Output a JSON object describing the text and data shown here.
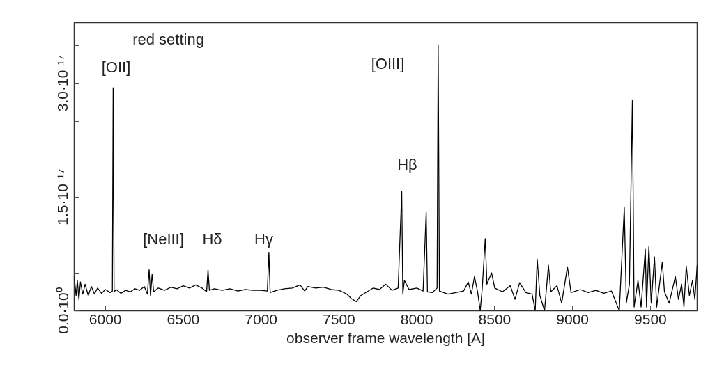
{
  "chart_data": {
    "type": "line",
    "xlabel": "observer frame wavelength [A]",
    "xlim": [
      5800,
      9800
    ],
    "xticks": [
      6000,
      6500,
      7000,
      7500,
      8000,
      8500,
      9000,
      9500
    ],
    "ylim": [
      0,
      3.8e-17
    ],
    "yticks": [
      {
        "value": 0,
        "label": "0.0·10⁰"
      },
      {
        "value": 5e-18,
        "label": null
      },
      {
        "value": 1e-17,
        "label": null
      },
      {
        "value": 1.5e-17,
        "label": "1.5·10⁻¹⁷"
      },
      {
        "value": 2e-17,
        "label": null
      },
      {
        "value": 2.5e-17,
        "label": null
      },
      {
        "value": 3e-17,
        "label": "3.0·10⁻¹⁷"
      },
      {
        "value": 3.5e-17,
        "label": null
      }
    ],
    "grid": false,
    "annotations": [
      "red setting",
      "[OII]",
      "[NeIII]",
      "Hδ",
      "Hγ",
      "Hβ",
      "[OIII]"
    ],
    "series": [
      {
        "color": "#000000",
        "x": [
          5800,
          5812,
          5820,
          5830,
          5840,
          5855,
          5870,
          5890,
          5910,
          5930,
          5950,
          5975,
          6000,
          6030,
          6045,
          6050,
          6056,
          6070,
          6100,
          6130,
          6160,
          6190,
          6220,
          6250,
          6270,
          6281,
          6290,
          6300,
          6310,
          6340,
          6380,
          6420,
          6460,
          6500,
          6540,
          6580,
          6620,
          6650,
          6659,
          6668,
          6700,
          6750,
          6800,
          6850,
          6900,
          6950,
          7000,
          7040,
          7050,
          7058,
          7100,
          7150,
          7200,
          7250,
          7280,
          7300,
          7350,
          7400,
          7450,
          7500,
          7550,
          7580,
          7612,
          7640,
          7680,
          7720,
          7760,
          7800,
          7840,
          7880,
          7903,
          7910,
          7920,
          7950,
          8000,
          8040,
          8060,
          8068,
          8100,
          8130,
          8137,
          8145,
          8200,
          8250,
          8300,
          8330,
          8350,
          8370,
          8390,
          8407,
          8420,
          8439,
          8450,
          8480,
          8500,
          8550,
          8600,
          8630,
          8660,
          8700,
          8740,
          8760,
          8773,
          8790,
          8820,
          8845,
          8860,
          8900,
          8930,
          8967,
          8990,
          9050,
          9100,
          9150,
          9200,
          9250,
          9300,
          9332,
          9345,
          9365,
          9384,
          9395,
          9420,
          9440,
          9467,
          9475,
          9490,
          9505,
          9526,
          9540,
          9576,
          9590,
          9620,
          9660,
          9680,
          9700,
          9715,
          9730,
          9750,
          9770,
          9785,
          9800
        ],
        "values": [
          4.5e-18,
          2e-18,
          4e-18,
          1.5e-18,
          3.8e-18,
          2.2e-18,
          3.5e-18,
          2e-18,
          3.2e-18,
          2.2e-18,
          3e-18,
          2.3e-18,
          2.8e-18,
          2.4e-18,
          2.6e-18,
          2.94e-17,
          2.5e-18,
          2.8e-18,
          2.3e-18,
          2.7e-18,
          2.5e-18,
          2.9e-18,
          2.7e-18,
          3.2e-18,
          2.2e-18,
          5.4e-18,
          2e-18,
          4.8e-18,
          2.5e-18,
          3e-18,
          2.7e-18,
          3.1e-18,
          2.9e-18,
          3.3e-18,
          3e-18,
          3.4e-18,
          3e-18,
          2.5e-18,
          5.4e-18,
          2.7e-18,
          2.9e-18,
          2.7e-18,
          2.9e-18,
          2.6e-18,
          2.8e-18,
          2.7e-18,
          2.7e-18,
          2.6e-18,
          7.7e-18,
          2.4e-18,
          2.7e-18,
          2.9e-18,
          3e-18,
          3.4e-18,
          2.6e-18,
          3.2e-18,
          3e-18,
          3.1e-18,
          2.8e-18,
          2.7e-18,
          2.2e-18,
          1.6e-18,
          1.2e-18,
          2e-18,
          2.5e-18,
          3e-18,
          2.8e-18,
          3.5e-18,
          2.7e-18,
          3e-18,
          1.57e-17,
          2.2e-18,
          4e-18,
          2.8e-18,
          3e-18,
          2.6e-18,
          1.3e-17,
          2.5e-18,
          2.4e-18,
          3e-18,
          3.51e-17,
          2.6e-18,
          2.2e-18,
          2.4e-18,
          2.6e-18,
          3.8e-18,
          2.2e-18,
          4.5e-18,
          2.5e-18,
          0.0,
          3e-18,
          9.5e-18,
          3.5e-18,
          5e-18,
          3e-18,
          2.5e-18,
          3.3e-18,
          1.5e-18,
          3.7e-18,
          2.4e-18,
          2.2e-18,
          0.0,
          6.8e-18,
          2e-18,
          0.0,
          6e-18,
          2.5e-18,
          3.3e-18,
          1e-18,
          5.8e-18,
          2.4e-18,
          2.8e-18,
          2.4e-18,
          2.7e-18,
          2.3e-18,
          2.6e-18,
          0.0,
          1.36e-17,
          1e-18,
          3.5e-18,
          2.78e-17,
          5e-19,
          4e-18,
          5e-19,
          8.1e-18,
          5e-19,
          8.5e-18,
          1e-18,
          7.1e-18,
          5e-19,
          6.4e-18,
          2.5e-18,
          1e-18,
          4.5e-18,
          1.5e-18,
          3.5e-18,
          5e-19,
          5.9e-18,
          2e-18,
          4e-18,
          1.5e-18,
          6e-18
        ]
      }
    ]
  }
}
